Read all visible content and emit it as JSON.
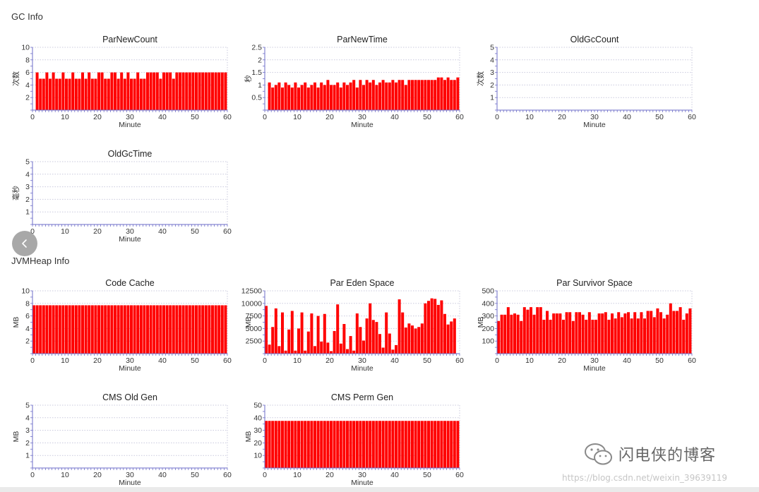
{
  "sections": {
    "gc": "GC Info",
    "jvm": "JVMHeap Info"
  },
  "watermark": {
    "text": "闪电侠的博客",
    "url": "https://blog.csdn.net/weixin_39639119"
  },
  "colors": {
    "bar": "#ff0000",
    "bar_edge": "#cc0000",
    "grid": "#c9c9dd",
    "axis": "#6e6ec8"
  },
  "chart_data": [
    {
      "id": "parnewcount",
      "type": "bar",
      "title": "ParNewCount",
      "xlabel": "Minute",
      "ylabel": "次数",
      "xlim": [
        0,
        60
      ],
      "ylim": [
        0,
        10
      ],
      "xticks": [
        0,
        10,
        20,
        30,
        40,
        50,
        60
      ],
      "yticks": [
        2,
        4,
        6,
        8,
        10
      ],
      "x": [
        1,
        2,
        3,
        4,
        5,
        6,
        7,
        8,
        9,
        10,
        11,
        12,
        13,
        14,
        15,
        16,
        17,
        18,
        19,
        20,
        21,
        22,
        23,
        24,
        25,
        26,
        27,
        28,
        29,
        30,
        31,
        32,
        33,
        34,
        35,
        36,
        37,
        38,
        39,
        40,
        41,
        42,
        43,
        44,
        45,
        46,
        47,
        48,
        49,
        50,
        51,
        52,
        53,
        54,
        55,
        56,
        57,
        58,
        59
      ],
      "values": [
        6,
        5,
        5,
        6,
        5,
        6,
        5,
        5,
        6,
        5,
        5,
        6,
        5,
        5,
        6,
        5,
        6,
        5,
        5,
        6,
        6,
        5,
        5,
        6,
        6,
        5,
        6,
        5,
        6,
        5,
        5,
        6,
        5,
        5,
        6,
        6,
        6,
        6,
        5,
        6,
        6,
        6,
        5,
        6,
        6,
        6,
        6,
        6,
        6,
        6,
        6,
        6,
        6,
        6,
        6,
        6,
        6,
        6,
        6
      ]
    },
    {
      "id": "parnewtime",
      "type": "bar",
      "title": "ParNewTime",
      "xlabel": "Minute",
      "ylabel": "秒",
      "xlim": [
        0,
        60
      ],
      "ylim": [
        0,
        2.5
      ],
      "xticks": [
        0,
        10,
        20,
        30,
        40,
        50,
        60
      ],
      "yticks": [
        0.5,
        1,
        1.5,
        2,
        2.5
      ],
      "x": [
        1,
        2,
        3,
        4,
        5,
        6,
        7,
        8,
        9,
        10,
        11,
        12,
        13,
        14,
        15,
        16,
        17,
        18,
        19,
        20,
        21,
        22,
        23,
        24,
        25,
        26,
        27,
        28,
        29,
        30,
        31,
        32,
        33,
        34,
        35,
        36,
        37,
        38,
        39,
        40,
        41,
        42,
        43,
        44,
        45,
        46,
        47,
        48,
        49,
        50,
        51,
        52,
        53,
        54,
        55,
        56,
        57,
        58,
        59
      ],
      "values": [
        1.1,
        0.9,
        1.0,
        1.1,
        0.9,
        1.1,
        1.0,
        0.9,
        1.1,
        0.9,
        1.0,
        1.1,
        0.9,
        1.0,
        1.1,
        0.9,
        1.1,
        1.0,
        1.2,
        1.0,
        1.0,
        1.1,
        0.9,
        1.1,
        1.0,
        1.1,
        1.2,
        0.9,
        1.2,
        1.0,
        1.2,
        1.1,
        1.2,
        1.0,
        1.1,
        1.2,
        1.1,
        1.1,
        1.2,
        1.1,
        1.2,
        1.2,
        1.0,
        1.2,
        1.2,
        1.2,
        1.2,
        1.2,
        1.2,
        1.2,
        1.2,
        1.2,
        1.3,
        1.3,
        1.2,
        1.3,
        1.2,
        1.2,
        1.3
      ]
    },
    {
      "id": "oldgccount",
      "type": "bar",
      "title": "OldGcCount",
      "xlabel": "Minute",
      "ylabel": "次数",
      "xlim": [
        0,
        60
      ],
      "ylim": [
        0,
        5
      ],
      "xticks": [
        0,
        10,
        20,
        30,
        40,
        50,
        60
      ],
      "yticks": [
        1,
        2,
        3,
        4,
        5
      ],
      "x": [],
      "values": []
    },
    {
      "id": "oldgctime",
      "type": "bar",
      "title": "OldGcTime",
      "xlabel": "Minute",
      "ylabel": "毫秒",
      "xlim": [
        0,
        60
      ],
      "ylim": [
        0,
        5
      ],
      "xticks": [
        0,
        10,
        20,
        30,
        40,
        50,
        60
      ],
      "yticks": [
        1,
        2,
        3,
        4,
        5
      ],
      "x": [],
      "values": []
    },
    {
      "id": "codecache",
      "type": "bar",
      "title": "Code Cache",
      "xlabel": "Minute",
      "ylabel": "MB",
      "xlim": [
        0,
        60
      ],
      "ylim": [
        0,
        10
      ],
      "xticks": [
        0,
        10,
        20,
        30,
        40,
        50,
        60
      ],
      "yticks": [
        2,
        4,
        6,
        8,
        10
      ],
      "x": [
        0,
        1,
        2,
        3,
        4,
        5,
        6,
        7,
        8,
        9,
        10,
        11,
        12,
        13,
        14,
        15,
        16,
        17,
        18,
        19,
        20,
        21,
        22,
        23,
        24,
        25,
        26,
        27,
        28,
        29,
        30,
        31,
        32,
        33,
        34,
        35,
        36,
        37,
        38,
        39,
        40,
        41,
        42,
        43,
        44,
        45,
        46,
        47,
        48,
        49,
        50,
        51,
        52,
        53,
        54,
        55,
        56,
        57,
        58,
        59
      ],
      "values": [
        7.7,
        7.7,
        7.7,
        7.7,
        7.7,
        7.7,
        7.7,
        7.7,
        7.7,
        7.7,
        7.7,
        7.7,
        7.7,
        7.7,
        7.7,
        7.7,
        7.7,
        7.7,
        7.7,
        7.7,
        7.7,
        7.7,
        7.7,
        7.7,
        7.7,
        7.7,
        7.7,
        7.7,
        7.7,
        7.7,
        7.7,
        7.7,
        7.7,
        7.7,
        7.7,
        7.7,
        7.7,
        7.7,
        7.7,
        7.7,
        7.7,
        7.7,
        7.7,
        7.7,
        7.7,
        7.7,
        7.7,
        7.7,
        7.7,
        7.7,
        7.7,
        7.7,
        7.7,
        7.7,
        7.7,
        7.7,
        7.7,
        7.7,
        7.7,
        7.7
      ]
    },
    {
      "id": "pareden",
      "type": "bar",
      "title": "Par Eden Space",
      "xlabel": "Minute",
      "ylabel": "MB",
      "xlim": [
        0,
        60
      ],
      "ylim": [
        0,
        12500
      ],
      "xticks": [
        0,
        10,
        20,
        30,
        40,
        50,
        60
      ],
      "yticks": [
        2500,
        5000,
        7500,
        10000,
        12500
      ],
      "x": [
        0,
        1,
        2,
        3,
        4,
        5,
        6,
        7,
        8,
        9,
        10,
        11,
        12,
        13,
        14,
        15,
        16,
        17,
        18,
        19,
        20,
        21,
        22,
        23,
        24,
        25,
        26,
        27,
        28,
        29,
        30,
        31,
        32,
        33,
        34,
        35,
        36,
        37,
        38,
        39,
        40,
        41,
        42,
        43,
        44,
        45,
        46,
        47,
        48,
        49,
        50,
        51,
        52,
        53,
        54,
        55,
        56,
        57,
        58,
        59
      ],
      "values": [
        9500,
        1800,
        5300,
        9000,
        1500,
        8200,
        600,
        4800,
        8500,
        600,
        5000,
        8200,
        600,
        4400,
        8000,
        1500,
        7500,
        2400,
        7900,
        2200,
        500,
        4500,
        9800,
        2000,
        5900,
        900,
        3500,
        600,
        8000,
        5300,
        2600,
        7000,
        10000,
        6700,
        6300,
        3900,
        1200,
        8200,
        4000,
        800,
        1700,
        10800,
        8200,
        5200,
        6000,
        5600,
        5000,
        5300,
        6000,
        10000,
        10500,
        11000,
        10900,
        9700,
        10600,
        7900,
        5800,
        6400,
        7000,
        0
      ]
    },
    {
      "id": "parsurvivor",
      "type": "bar",
      "title": "Par Survivor Space",
      "xlabel": "Minute",
      "ylabel": "MB",
      "xlim": [
        0,
        60
      ],
      "ylim": [
        0,
        500
      ],
      "xticks": [
        0,
        10,
        20,
        30,
        40,
        50,
        60
      ],
      "yticks": [
        100,
        200,
        300,
        400,
        500
      ],
      "x": [
        0,
        1,
        2,
        3,
        4,
        5,
        6,
        7,
        8,
        9,
        10,
        11,
        12,
        13,
        14,
        15,
        16,
        17,
        18,
        19,
        20,
        21,
        22,
        23,
        24,
        25,
        26,
        27,
        28,
        29,
        30,
        31,
        32,
        33,
        34,
        35,
        36,
        37,
        38,
        39,
        40,
        41,
        42,
        43,
        44,
        45,
        46,
        47,
        48,
        49,
        50,
        51,
        52,
        53,
        54,
        55,
        56,
        57,
        58,
        59
      ],
      "values": [
        260,
        310,
        310,
        370,
        310,
        320,
        310,
        260,
        370,
        350,
        370,
        310,
        370,
        370,
        270,
        340,
        270,
        320,
        320,
        320,
        270,
        330,
        330,
        260,
        330,
        330,
        310,
        270,
        330,
        270,
        270,
        320,
        320,
        330,
        270,
        320,
        280,
        330,
        290,
        320,
        330,
        280,
        330,
        280,
        330,
        280,
        340,
        340,
        290,
        360,
        330,
        280,
        310,
        400,
        340,
        340,
        370,
        270,
        320,
        360
      ]
    },
    {
      "id": "cmsold",
      "type": "bar",
      "title": "CMS Old Gen",
      "xlabel": "Minute",
      "ylabel": "MB",
      "xlim": [
        0,
        60
      ],
      "ylim": [
        0,
        5
      ],
      "xticks": [
        0,
        10,
        20,
        30,
        40,
        50,
        60
      ],
      "yticks": [
        1,
        2,
        3,
        4,
        5
      ],
      "x": [],
      "values": []
    },
    {
      "id": "cmsperm",
      "type": "bar",
      "title": "CMS Perm Gen",
      "xlabel": "Minute",
      "ylabel": "MB",
      "xlim": [
        0,
        60
      ],
      "ylim": [
        0,
        50
      ],
      "xticks": [
        0,
        10,
        20,
        30,
        40,
        50,
        60
      ],
      "yticks": [
        10,
        20,
        30,
        40,
        50
      ],
      "x": [
        0,
        1,
        2,
        3,
        4,
        5,
        6,
        7,
        8,
        9,
        10,
        11,
        12,
        13,
        14,
        15,
        16,
        17,
        18,
        19,
        20,
        21,
        22,
        23,
        24,
        25,
        26,
        27,
        28,
        29,
        30,
        31,
        32,
        33,
        34,
        35,
        36,
        37,
        38,
        39,
        40,
        41,
        42,
        43,
        44,
        45,
        46,
        47,
        48,
        49,
        50,
        51,
        52,
        53,
        54,
        55,
        56,
        57,
        58,
        59
      ],
      "values": [
        37.5,
        37.5,
        37.5,
        37.5,
        37.5,
        37.5,
        37.5,
        37.5,
        37.5,
        37.5,
        37.5,
        37.5,
        37.5,
        37.5,
        37.5,
        37.5,
        37.5,
        37.5,
        37.5,
        37.5,
        37.5,
        37.5,
        37.5,
        37.5,
        37.5,
        37.5,
        37.5,
        37.5,
        37.5,
        37.5,
        37.5,
        37.5,
        37.5,
        37.5,
        37.5,
        37.5,
        37.5,
        37.5,
        37.5,
        37.5,
        37.5,
        37.5,
        37.5,
        37.5,
        37.5,
        37.5,
        37.5,
        37.5,
        37.5,
        37.5,
        37.5,
        37.5,
        37.5,
        37.5,
        37.5,
        37.5,
        37.5,
        37.5,
        37.5,
        37.5
      ]
    }
  ]
}
